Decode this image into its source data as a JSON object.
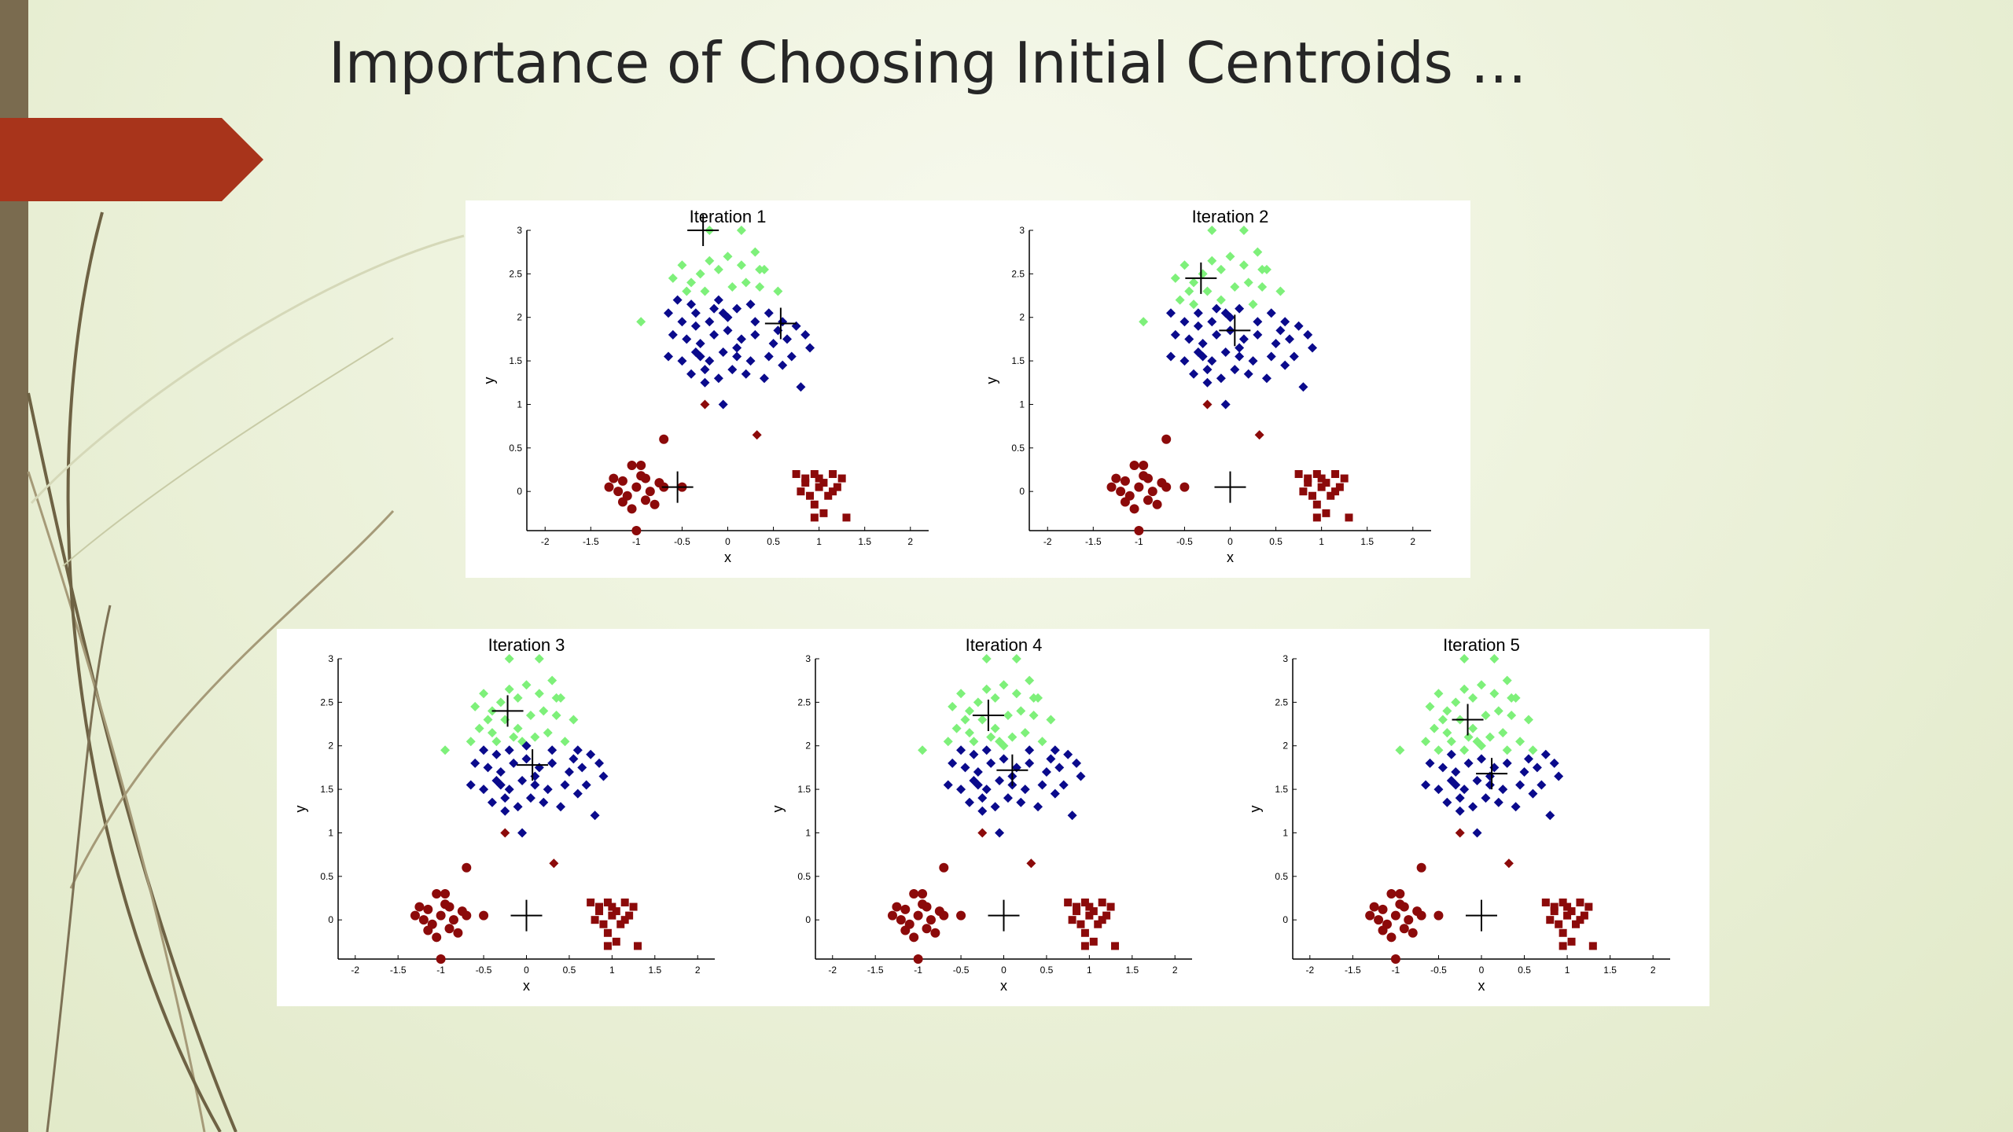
{
  "slide": {
    "title": "Importance of Choosing Initial Centroids …"
  },
  "colors": {
    "left_bar": "#7a6b4f",
    "accent_arrow": "#a8341b",
    "cluster_green": "#7ef07a",
    "cluster_blue": "#0a0a8c",
    "cluster_red": "#8c0a0a",
    "centroid": "#000000"
  },
  "chart_data": [
    {
      "type": "scatter",
      "title": "Iteration 1",
      "xlabel": "x",
      "ylabel": "y",
      "xlim": [
        -2.2,
        2.2
      ],
      "ylim": [
        -0.45,
        3
      ],
      "xticks": [
        "-2",
        "-1.5",
        "-1",
        "-0.5",
        "0",
        "0.5",
        "1",
        "1.5",
        "2"
      ],
      "yticks": [
        "0",
        "0.5",
        "1",
        "1.5",
        "2",
        "2.5",
        "3"
      ],
      "centroids": [
        [
          -0.27,
          3.0
        ],
        [
          0.58,
          1.93
        ],
        [
          -0.55,
          0.05
        ]
      ],
      "assignment": "green-top-blue-upper-red-lower"
    },
    {
      "type": "scatter",
      "title": "Iteration 2",
      "xlabel": "x",
      "ylabel": "y",
      "xlim": [
        -2.2,
        2.2
      ],
      "ylim": [
        -0.45,
        3
      ],
      "xticks": [
        "-2",
        "-1.5",
        "-1",
        "-0.5",
        "0",
        "0.5",
        "1",
        "1.5",
        "2"
      ],
      "yticks": [
        "0",
        "0.5",
        "1",
        "1.5",
        "2",
        "2.5",
        "3"
      ],
      "centroids": [
        [
          -0.32,
          2.45
        ],
        [
          0.05,
          1.85
        ],
        [
          0.0,
          0.05
        ]
      ]
    },
    {
      "type": "scatter",
      "title": "Iteration 3",
      "xlabel": "x",
      "ylabel": "y",
      "xlim": [
        -2.2,
        2.2
      ],
      "ylim": [
        -0.45,
        3
      ],
      "xticks": [
        "-2",
        "-1.5",
        "-1",
        "-0.5",
        "0",
        "0.5",
        "1",
        "1.5",
        "2"
      ],
      "yticks": [
        "0",
        "0.5",
        "1",
        "1.5",
        "2",
        "2.5",
        "3"
      ],
      "centroids": [
        [
          -0.22,
          2.4
        ],
        [
          0.07,
          1.78
        ],
        [
          0.0,
          0.05
        ]
      ]
    },
    {
      "type": "scatter",
      "title": "Iteration 4",
      "xlabel": "x",
      "ylabel": "y",
      "xlim": [
        -2.2,
        2.2
      ],
      "ylim": [
        -0.45,
        3
      ],
      "xticks": [
        "-2",
        "-1.5",
        "-1",
        "-0.5",
        "0",
        "0.5",
        "1",
        "1.5",
        "2"
      ],
      "yticks": [
        "0",
        "0.5",
        "1",
        "1.5",
        "2",
        "2.5",
        "3"
      ],
      "centroids": [
        [
          -0.18,
          2.35
        ],
        [
          0.1,
          1.72
        ],
        [
          0.0,
          0.05
        ]
      ]
    },
    {
      "type": "scatter",
      "title": "Iteration 5",
      "xlabel": "x",
      "ylabel": "y",
      "xlim": [
        -2.2,
        2.2
      ],
      "ylim": [
        -0.45,
        3
      ],
      "xticks": [
        "-2",
        "-1.5",
        "-1",
        "-0.5",
        "0",
        "0.5",
        "1",
        "1.5",
        "2"
      ],
      "yticks": [
        "0",
        "0.5",
        "1",
        "1.5",
        "2",
        "2.5",
        "3"
      ],
      "centroids": [
        [
          -0.16,
          2.3
        ],
        [
          0.12,
          1.68
        ],
        [
          0.0,
          0.05
        ]
      ]
    }
  ],
  "points": {
    "upper": [
      [
        -0.6,
        2.45
      ],
      [
        -0.5,
        2.6
      ],
      [
        -0.45,
        2.3
      ],
      [
        -0.3,
        2.5
      ],
      [
        -0.2,
        2.65
      ],
      [
        -0.1,
        2.55
      ],
      [
        0.0,
        2.7
      ],
      [
        0.15,
        2.6
      ],
      [
        0.3,
        2.75
      ],
      [
        0.4,
        2.55
      ],
      [
        -0.55,
        2.2
      ],
      [
        -0.4,
        2.15
      ],
      [
        -0.25,
        2.3
      ],
      [
        -0.1,
        2.2
      ],
      [
        0.05,
        2.35
      ],
      [
        0.2,
        2.4
      ],
      [
        0.35,
        2.35
      ],
      [
        -0.2,
        3.0
      ],
      [
        0.15,
        3.0
      ],
      [
        -0.35,
        2.05
      ],
      [
        -0.65,
        2.05
      ],
      [
        -0.5,
        1.95
      ],
      [
        -0.35,
        1.9
      ],
      [
        -0.2,
        1.95
      ],
      [
        -0.05,
        2.05
      ],
      [
        0.1,
        2.1
      ],
      [
        0.25,
        2.15
      ],
      [
        0.45,
        2.05
      ],
      [
        0.6,
        1.95
      ],
      [
        0.75,
        1.9
      ],
      [
        -0.6,
        1.8
      ],
      [
        -0.45,
        1.75
      ],
      [
        -0.3,
        1.7
      ],
      [
        -0.15,
        1.8
      ],
      [
        0.0,
        1.85
      ],
      [
        0.15,
        1.75
      ],
      [
        0.3,
        1.8
      ],
      [
        0.5,
        1.7
      ],
      [
        0.65,
        1.75
      ],
      [
        0.85,
        1.8
      ],
      [
        -0.65,
        1.55
      ],
      [
        -0.5,
        1.5
      ],
      [
        -0.35,
        1.6
      ],
      [
        -0.2,
        1.5
      ],
      [
        -0.05,
        1.6
      ],
      [
        0.1,
        1.55
      ],
      [
        0.25,
        1.5
      ],
      [
        0.45,
        1.55
      ],
      [
        0.6,
        1.45
      ],
      [
        0.9,
        1.65
      ],
      [
        -0.4,
        1.35
      ],
      [
        -0.25,
        1.4
      ],
      [
        -0.1,
        1.3
      ],
      [
        0.05,
        1.4
      ],
      [
        0.2,
        1.35
      ],
      [
        0.4,
        1.3
      ],
      [
        -0.25,
        1.25
      ],
      [
        0.8,
        1.2
      ],
      [
        0.55,
        2.3
      ],
      [
        -0.95,
        1.95
      ],
      [
        0.0,
        2.0
      ],
      [
        -0.15,
        2.1
      ],
      [
        0.3,
        1.95
      ],
      [
        0.35,
        2.55
      ],
      [
        -0.4,
        2.4
      ],
      [
        -0.05,
        1.0
      ],
      [
        0.1,
        1.65
      ],
      [
        -0.3,
        1.55
      ],
      [
        0.7,
        1.55
      ],
      [
        0.55,
        1.85
      ]
    ],
    "red_left": [
      [
        -1.3,
        0.05
      ],
      [
        -1.2,
        0.0
      ],
      [
        -1.15,
        0.12
      ],
      [
        -1.1,
        -0.05
      ],
      [
        -1.0,
        0.05
      ],
      [
        -0.95,
        0.18
      ],
      [
        -0.9,
        -0.1
      ],
      [
        -1.05,
        0.3
      ],
      [
        -1.15,
        -0.12
      ],
      [
        -0.85,
        0.0
      ],
      [
        -0.75,
        0.1
      ],
      [
        -0.8,
        -0.15
      ],
      [
        -1.25,
        0.15
      ],
      [
        -0.95,
        0.3
      ],
      [
        -0.7,
        0.05
      ],
      [
        -1.05,
        -0.2
      ],
      [
        -0.9,
        0.15
      ],
      [
        -1.0,
        -0.45
      ],
      [
        -0.7,
        0.6
      ],
      [
        -0.5,
        0.05
      ]
    ],
    "red_right": [
      [
        0.75,
        0.2
      ],
      [
        0.85,
        0.1
      ],
      [
        0.95,
        0.2
      ],
      [
        1.05,
        0.1
      ],
      [
        1.15,
        0.2
      ],
      [
        1.25,
        0.15
      ],
      [
        0.8,
        0.0
      ],
      [
        0.9,
        -0.05
      ],
      [
        1.0,
        0.05
      ],
      [
        1.1,
        -0.05
      ],
      [
        1.2,
        0.05
      ],
      [
        0.95,
        -0.15
      ],
      [
        1.05,
        -0.25
      ],
      [
        1.15,
        0.0
      ],
      [
        0.85,
        0.15
      ],
      [
        0.95,
        -0.3
      ],
      [
        1.3,
        -0.3
      ],
      [
        1.0,
        0.15
      ]
    ],
    "red_mid": [
      [
        -0.25,
        1.0
      ],
      [
        0.32,
        0.65
      ]
    ],
    "green_cut_y": [
      2.25,
      2.15,
      2.05,
      2.0,
      1.95
    ]
  }
}
